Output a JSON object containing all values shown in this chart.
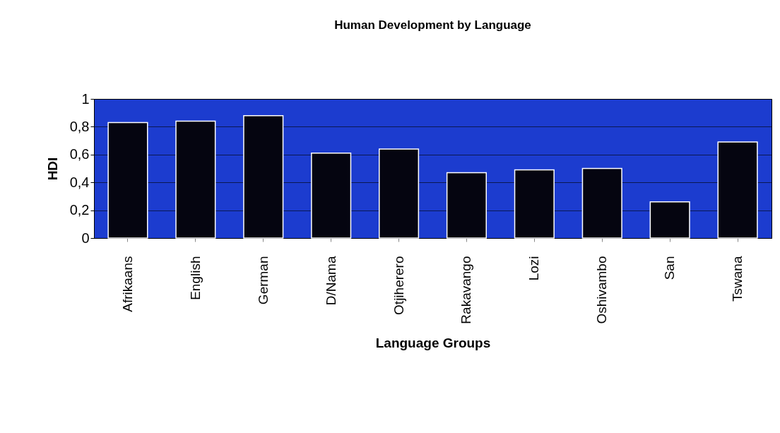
{
  "chart_data": {
    "type": "bar",
    "title": "Human Development by Language",
    "xlabel": "Language Groups",
    "ylabel": "HDI",
    "categories": [
      "Afrikaans",
      "English",
      "German",
      "D/Nama",
      "Otjiherero",
      "Rakavango",
      "Lozi",
      "Oshivambo",
      "San",
      "Tswana"
    ],
    "values": [
      0.83,
      0.84,
      0.88,
      0.61,
      0.64,
      0.47,
      0.49,
      0.5,
      0.26,
      0.69
    ],
    "color": "#050510",
    "ylim": [
      0,
      1
    ],
    "yticks": [
      0,
      {
        "value": 0.2,
        "label": "0,2"
      },
      {
        "value": 0.4,
        "label": "0,4"
      },
      {
        "value": 0.6,
        "label": "0,6"
      },
      {
        "value": 0.8,
        "label": "0,8"
      },
      1
    ],
    "grid": "y"
  }
}
